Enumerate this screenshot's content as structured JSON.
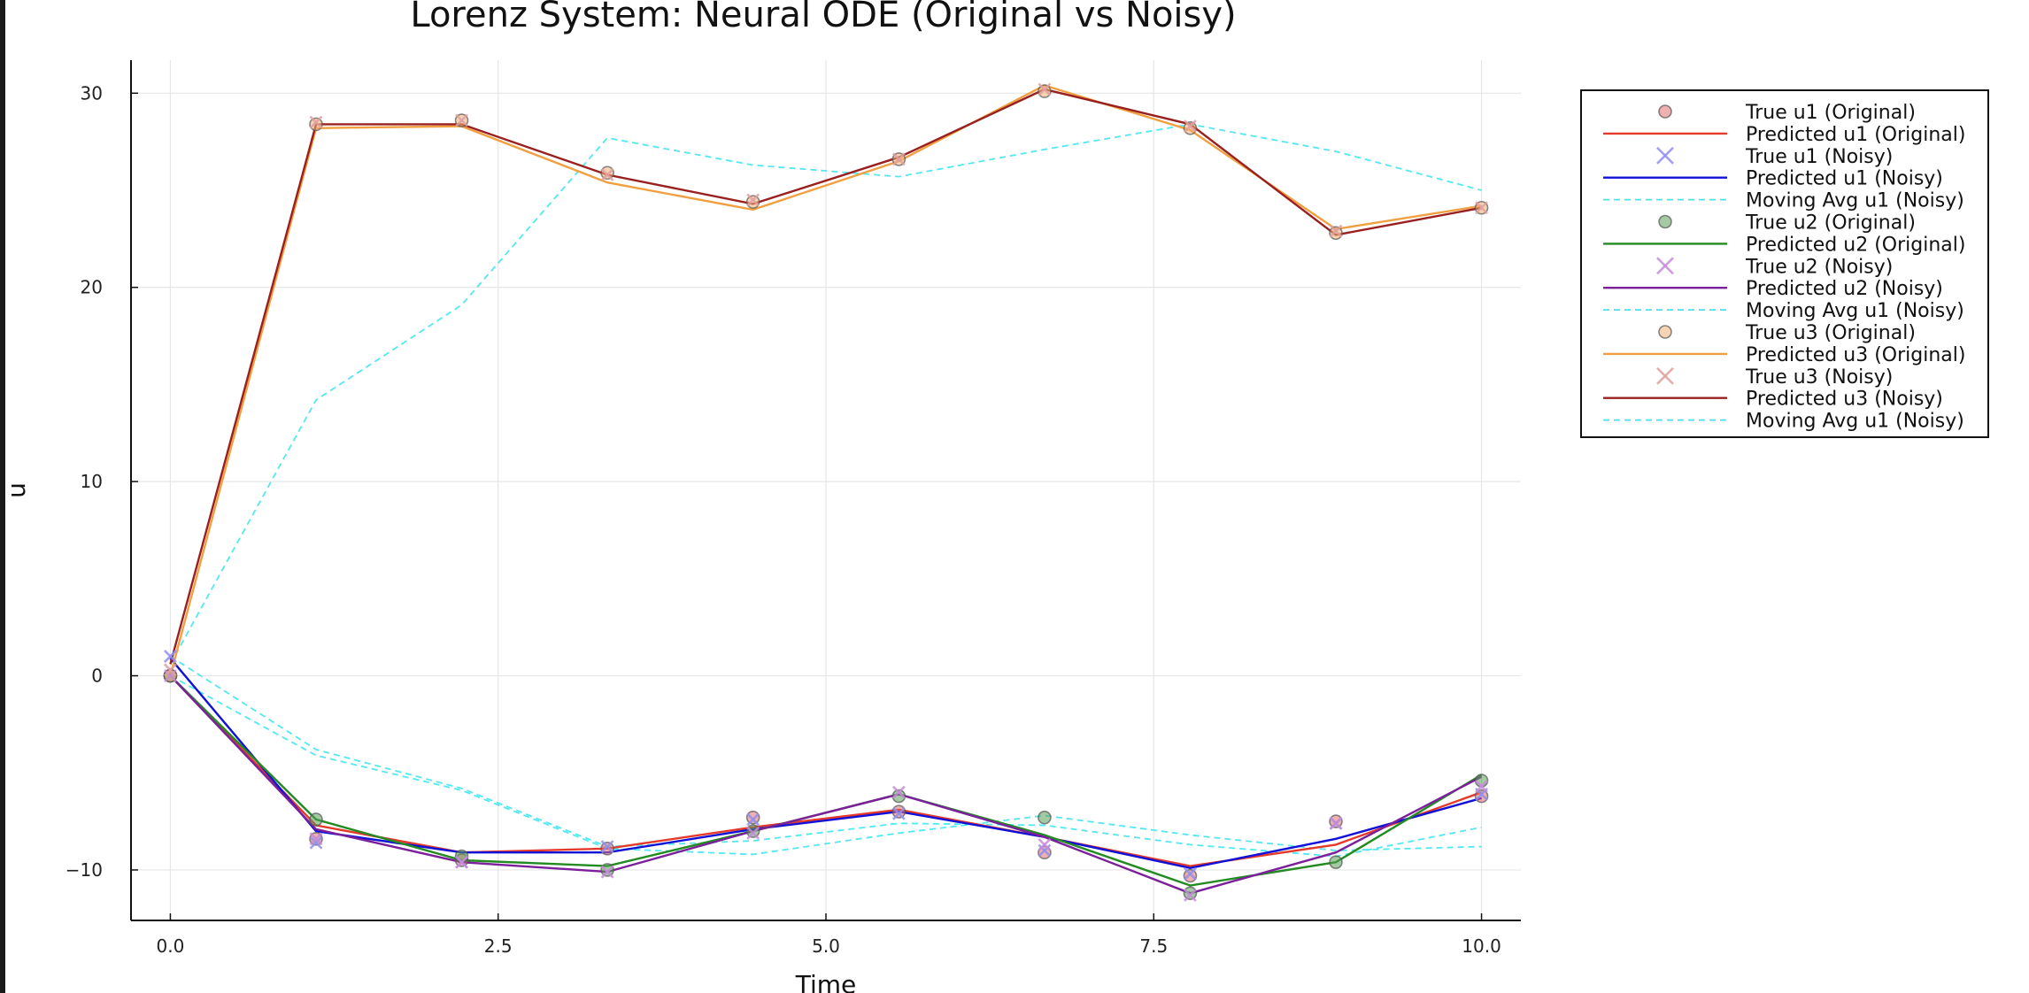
{
  "chart_data": {
    "type": "line",
    "title": "Lorenz System: Neural ODE (Original vs Noisy)",
    "xlabel": "Time",
    "ylabel": "u",
    "xlim": [
      -0.3,
      10.3
    ],
    "ylim": [
      -12.6,
      31.7
    ],
    "xticks": [
      0.0,
      2.5,
      5.0,
      7.5,
      10.0
    ],
    "xtick_labels": [
      "0.0",
      "2.5",
      "5.0",
      "7.5",
      "10.0"
    ],
    "yticks": [
      -10,
      0,
      10,
      20,
      30
    ],
    "ytick_labels": [
      "−10",
      "0",
      "10",
      "20",
      "30"
    ],
    "grid": true,
    "legend_position": "outer top-right",
    "x": [
      0.0,
      1.111,
      2.222,
      3.333,
      4.444,
      5.556,
      6.667,
      7.778,
      8.889,
      10.0
    ],
    "series": [
      {
        "name": "True u1 (Original)",
        "kind": "marker-circle",
        "color": "#e26f6f",
        "values": [
          0.0,
          -8.4,
          -9.5,
          -8.9,
          -7.3,
          -7.0,
          -9.1,
          -10.3,
          -7.5,
          -6.2
        ]
      },
      {
        "name": "Predicted u1 (Original)",
        "kind": "line",
        "color": "#e5392a",
        "values": [
          0.0,
          -7.7,
          -9.1,
          -8.9,
          -7.8,
          -6.9,
          -8.3,
          -9.8,
          -8.7,
          -6.0
        ]
      },
      {
        "name": "True u1 (Noisy)",
        "kind": "marker-x",
        "color": "#8f8fef",
        "values": [
          1.0,
          -8.6,
          -9.6,
          -8.8,
          -7.4,
          -7.1,
          -9.0,
          -10.2,
          -7.6,
          -6.1
        ]
      },
      {
        "name": "Predicted u1 (Noisy)",
        "kind": "line",
        "color": "#1010d8",
        "values": [
          0.9,
          -8.0,
          -9.1,
          -9.1,
          -7.9,
          -7.0,
          -8.3,
          -9.9,
          -8.4,
          -6.3
        ]
      },
      {
        "name": "Moving Avg u1 (Noisy)",
        "kind": "dashed",
        "color": "#3fe6ee",
        "values": [
          1.0,
          -3.8,
          -5.8,
          -8.8,
          -8.5,
          -7.6,
          -7.7,
          -8.7,
          -9.3,
          -7.8
        ]
      },
      {
        "name": "True u2 (Original)",
        "kind": "marker-circle",
        "color": "#5a9e5a",
        "values": [
          0.0,
          -7.4,
          -9.3,
          -10.0,
          -8.0,
          -6.2,
          -7.3,
          -11.2,
          -9.6,
          -5.4
        ]
      },
      {
        "name": "Predicted u2 (Original)",
        "kind": "line",
        "color": "#228b22",
        "values": [
          0.0,
          -7.4,
          -9.5,
          -9.8,
          -8.0,
          -6.1,
          -8.2,
          -10.8,
          -9.6,
          -5.1
        ]
      },
      {
        "name": "True u2 (Noisy)",
        "kind": "marker-x",
        "color": "#c48cd8",
        "values": [
          0.0,
          -8.4,
          -9.6,
          -10.1,
          -8.1,
          -6.0,
          -8.7,
          -11.3,
          -7.6,
          -5.7
        ]
      },
      {
        "name": "Predicted u2 (Noisy)",
        "kind": "line",
        "color": "#7b1f9a",
        "values": [
          0.0,
          -7.9,
          -9.6,
          -10.1,
          -8.0,
          -6.1,
          -8.3,
          -11.2,
          -9.1,
          -5.2
        ]
      },
      {
        "name": "Moving Avg u1 (Noisy)",
        "kind": "dashed",
        "color": "#3fe6ee",
        "values": [
          0.0,
          -4.1,
          -5.9,
          -8.9,
          -9.2,
          -8.1,
          -7.2,
          -8.2,
          -9.0,
          -8.8
        ]
      },
      {
        "name": "True u3 (Original)",
        "kind": "marker-circle",
        "color": "#f0b074",
        "values": [
          0.0,
          28.4,
          28.6,
          25.9,
          24.4,
          26.6,
          30.1,
          28.2,
          22.8,
          24.1
        ]
      },
      {
        "name": "Predicted u3 (Original)",
        "kind": "line",
        "color": "#f0a040",
        "values": [
          0.0,
          28.2,
          28.3,
          25.4,
          24.0,
          26.5,
          30.4,
          28.1,
          23.0,
          24.2
        ]
      },
      {
        "name": "True u3 (Noisy)",
        "kind": "marker-x",
        "color": "#e0a0a0",
        "values": [
          0.3,
          28.5,
          28.6,
          25.8,
          24.5,
          26.6,
          30.2,
          28.3,
          22.9,
          24.1
        ]
      },
      {
        "name": "Predicted u3 (Noisy)",
        "kind": "line",
        "color": "#9a2020",
        "values": [
          0.6,
          28.4,
          28.4,
          25.8,
          24.3,
          26.7,
          30.2,
          28.4,
          22.7,
          24.1
        ]
      },
      {
        "name": "Moving Avg u1 (Noisy)",
        "kind": "dashed",
        "color": "#3fe6ee",
        "values": [
          0.6,
          14.2,
          19.1,
          27.7,
          26.3,
          25.7,
          27.1,
          28.4,
          27.0,
          25.0
        ]
      }
    ]
  }
}
